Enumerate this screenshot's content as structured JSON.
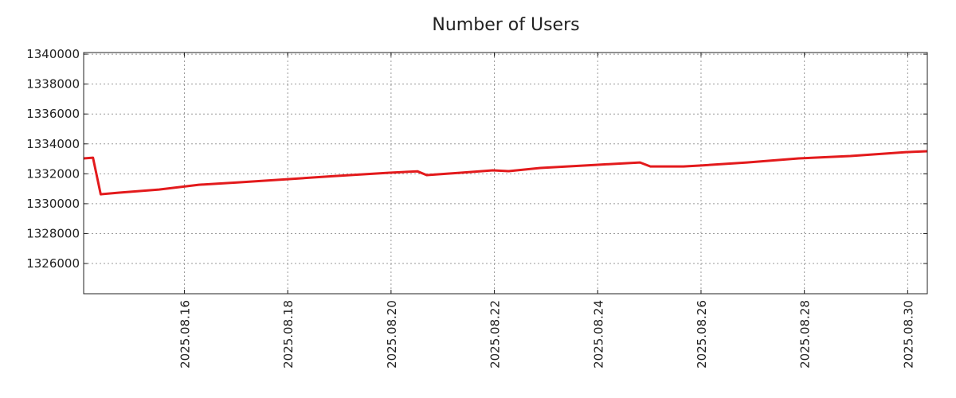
{
  "chart_data": {
    "type": "line",
    "title": "Number of Users",
    "xlabel": "",
    "ylabel": "",
    "x_unit": "day of August 2025",
    "xlim": [
      14.05,
      30.38
    ],
    "ylim": [
      1323980,
      1340110
    ],
    "grid": true,
    "x_ticks": [
      {
        "value": 16,
        "label": "2025.08.16"
      },
      {
        "value": 18,
        "label": "2025.08.18"
      },
      {
        "value": 20,
        "label": "2025.08.20"
      },
      {
        "value": 22,
        "label": "2025.08.22"
      },
      {
        "value": 24,
        "label": "2025.08.24"
      },
      {
        "value": 26,
        "label": "2025.08.26"
      },
      {
        "value": 28,
        "label": "2025.08.28"
      },
      {
        "value": 30,
        "label": "2025.08.30"
      }
    ],
    "y_ticks": [
      {
        "value": 1326000,
        "label": "1326000"
      },
      {
        "value": 1328000,
        "label": "1328000"
      },
      {
        "value": 1330000,
        "label": "1330000"
      },
      {
        "value": 1332000,
        "label": "1332000"
      },
      {
        "value": 1334000,
        "label": "1334000"
      },
      {
        "value": 1336000,
        "label": "1336000"
      },
      {
        "value": 1338000,
        "label": "1338000"
      },
      {
        "value": 1340000,
        "label": "1340000"
      }
    ],
    "series": [
      {
        "name": "Number of Users",
        "color": "#e31a1c",
        "x": [
          14.05,
          14.23,
          14.38,
          14.74,
          15.51,
          16.28,
          17.05,
          18.0,
          18.89,
          19.97,
          20.51,
          20.69,
          21.35,
          21.97,
          22.28,
          22.89,
          23.97,
          24.82,
          25.02,
          25.66,
          25.97,
          26.89,
          27.89,
          28.89,
          29.97,
          30.38
        ],
        "y": [
          1333030,
          1333080,
          1330630,
          1330740,
          1330950,
          1331270,
          1331430,
          1331640,
          1331850,
          1332070,
          1332170,
          1331910,
          1332070,
          1332230,
          1332180,
          1332390,
          1332600,
          1332760,
          1332490,
          1332490,
          1332550,
          1332760,
          1333030,
          1333190,
          1333450,
          1333510
        ]
      }
    ]
  }
}
